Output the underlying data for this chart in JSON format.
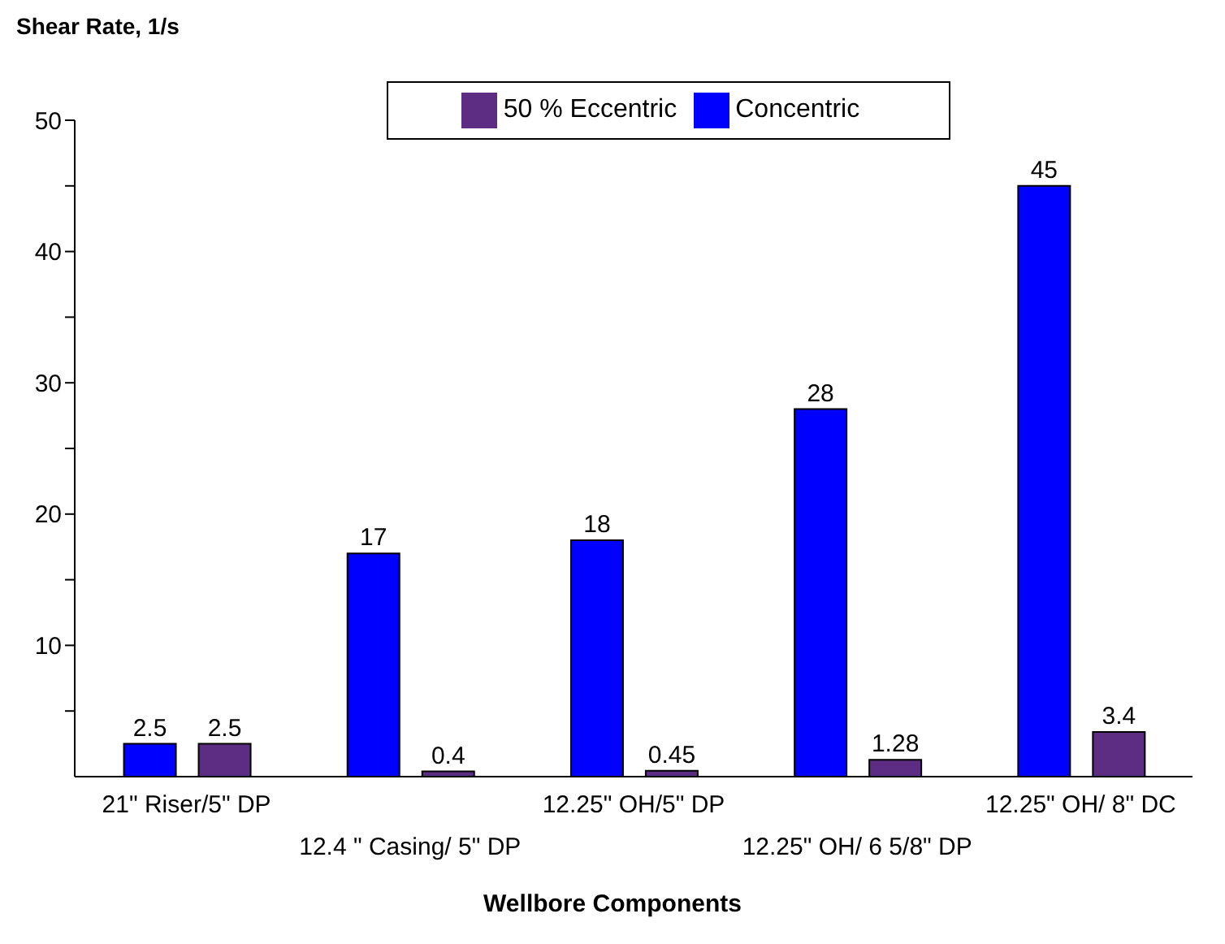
{
  "chart_data": {
    "type": "bar",
    "ylabel": "Shear Rate, 1/s",
    "xlabel": "Wellbore Components",
    "categories": [
      "21\" Riser/5\" DP",
      "12.4 \" Casing/ 5\" DP",
      "12.25\" OH/5\" DP",
      "12.25\" OH/ 6 5/8\" DP",
      "12.25\" OH/ 8\" DC"
    ],
    "series": [
      {
        "name": "Concentric",
        "color": "#0000ff",
        "values": [
          2.5,
          17,
          18,
          28,
          45
        ]
      },
      {
        "name": "50 % Eccentric",
        "color": "#5c2d82",
        "values": [
          2.5,
          0.4,
          0.45,
          1.28,
          3.4
        ]
      }
    ],
    "ylim": [
      0,
      50
    ],
    "yticks": [
      {
        "value": 5,
        "label": null
      },
      10,
      {
        "value": 15,
        "label": null
      },
      20,
      {
        "value": 25,
        "label": null
      },
      30,
      {
        "value": 35,
        "label": null
      },
      40,
      {
        "value": 45,
        "label": null
      },
      50
    ],
    "data_labels": true,
    "legend": "top",
    "grid": false
  }
}
